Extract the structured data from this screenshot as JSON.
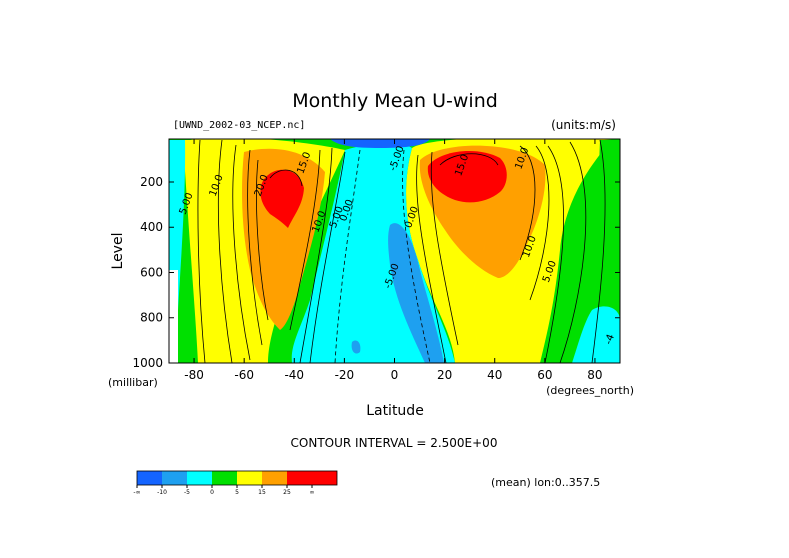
{
  "chart_data": {
    "type": "heatmap",
    "title": "Monthly Mean U-wind",
    "dataset_label": "[UWND_2002-03_NCEP.nc]",
    "units_label": "(units:m/s)",
    "xlabel": "Latitude",
    "x_units": "(degrees_north)",
    "ylabel": "Level",
    "y_units": "(millibar)",
    "xlim": [
      -90,
      90
    ],
    "ylim": [
      1000,
      10
    ],
    "x_ticks": [
      -80,
      -60,
      -40,
      -20,
      0,
      20,
      40,
      60,
      80
    ],
    "y_ticks": [
      200,
      400,
      600,
      800,
      1000
    ],
    "contour_interval_text": "CONTOUR INTERVAL = 2.500E+00",
    "contour_labels": [
      {
        "text": "5.00",
        "lat": -82,
        "lev": 300
      },
      {
        "text": "10.0",
        "lat": -70,
        "lev": 220
      },
      {
        "text": "20.0",
        "lat": -52,
        "lev": 220
      },
      {
        "text": "15.0",
        "lat": -35,
        "lev": 120
      },
      {
        "text": "5.00",
        "lat": -22,
        "lev": 360
      },
      {
        "text": "10.0",
        "lat": -29,
        "lev": 380
      },
      {
        "text": "0.00",
        "lat": -18,
        "lev": 330
      },
      {
        "text": "0.00",
        "lat": 8,
        "lev": 360
      },
      {
        "text": "-5.00",
        "lat": 0,
        "lev": 620
      },
      {
        "text": "15.0",
        "lat": 28,
        "lev": 130
      },
      {
        "text": "10.0",
        "lat": 52,
        "lev": 100
      },
      {
        "text": "10.0",
        "lat": 55,
        "lev": 490
      },
      {
        "text": "5.00",
        "lat": 63,
        "lev": 600
      },
      {
        "text": "-5.00",
        "lat": 2,
        "lev": 100
      },
      {
        "text": "-4",
        "lat": 87,
        "lev": 900
      }
    ],
    "levels": [
      {
        "color": "#1464ff",
        "label": "-∞"
      },
      {
        "color": "#1ea0f0",
        "label": "-10"
      },
      {
        "color": "#00ffff",
        "label": "-5"
      },
      {
        "color": "#00e000",
        "label": "0"
      },
      {
        "color": "#ffff00",
        "label": "5"
      },
      {
        "color": "#ffa000",
        "label": "15"
      },
      {
        "color": "#ff0000",
        "label": "25"
      },
      {
        "color": "#ff0000",
        "label": "∞"
      }
    ],
    "footer_note": "(mean) lon:0..357.5",
    "grid": false,
    "legend_position": "bottom-left"
  }
}
